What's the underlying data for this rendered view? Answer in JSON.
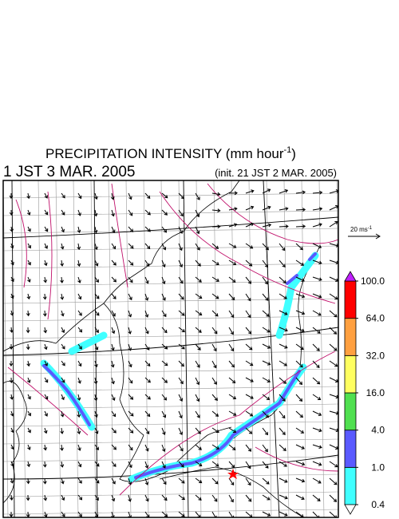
{
  "header": {
    "title": "PRECIPITATION INTENSITY (mm hour",
    "title_exponent": "-1",
    "title_close": ")",
    "valid_time": "1 JST 3 MAR. 2005",
    "init_time": "(init. 21 JST 2 MAR. 2005)"
  },
  "wind_scale": {
    "label": "20 ms",
    "exponent": "-1"
  },
  "colorbar": {
    "levels": [
      {
        "value": 0.4,
        "label": "0.4"
      },
      {
        "value": 1.0,
        "label": "1.0"
      },
      {
        "value": 4.0,
        "label": "4.0"
      },
      {
        "value": 16.0,
        "label": "16.0"
      },
      {
        "value": 32.0,
        "label": "32.0"
      },
      {
        "value": 64.0,
        "label": "64.0"
      },
      {
        "value": 100.0,
        "label": "100.0"
      }
    ],
    "colors": [
      "#40ffff",
      "#5a5aff",
      "#50e050",
      "#ffff60",
      "#ffa040",
      "#ff0000"
    ],
    "under_color": "#ffffff",
    "over_color": "#c020ff"
  }
}
